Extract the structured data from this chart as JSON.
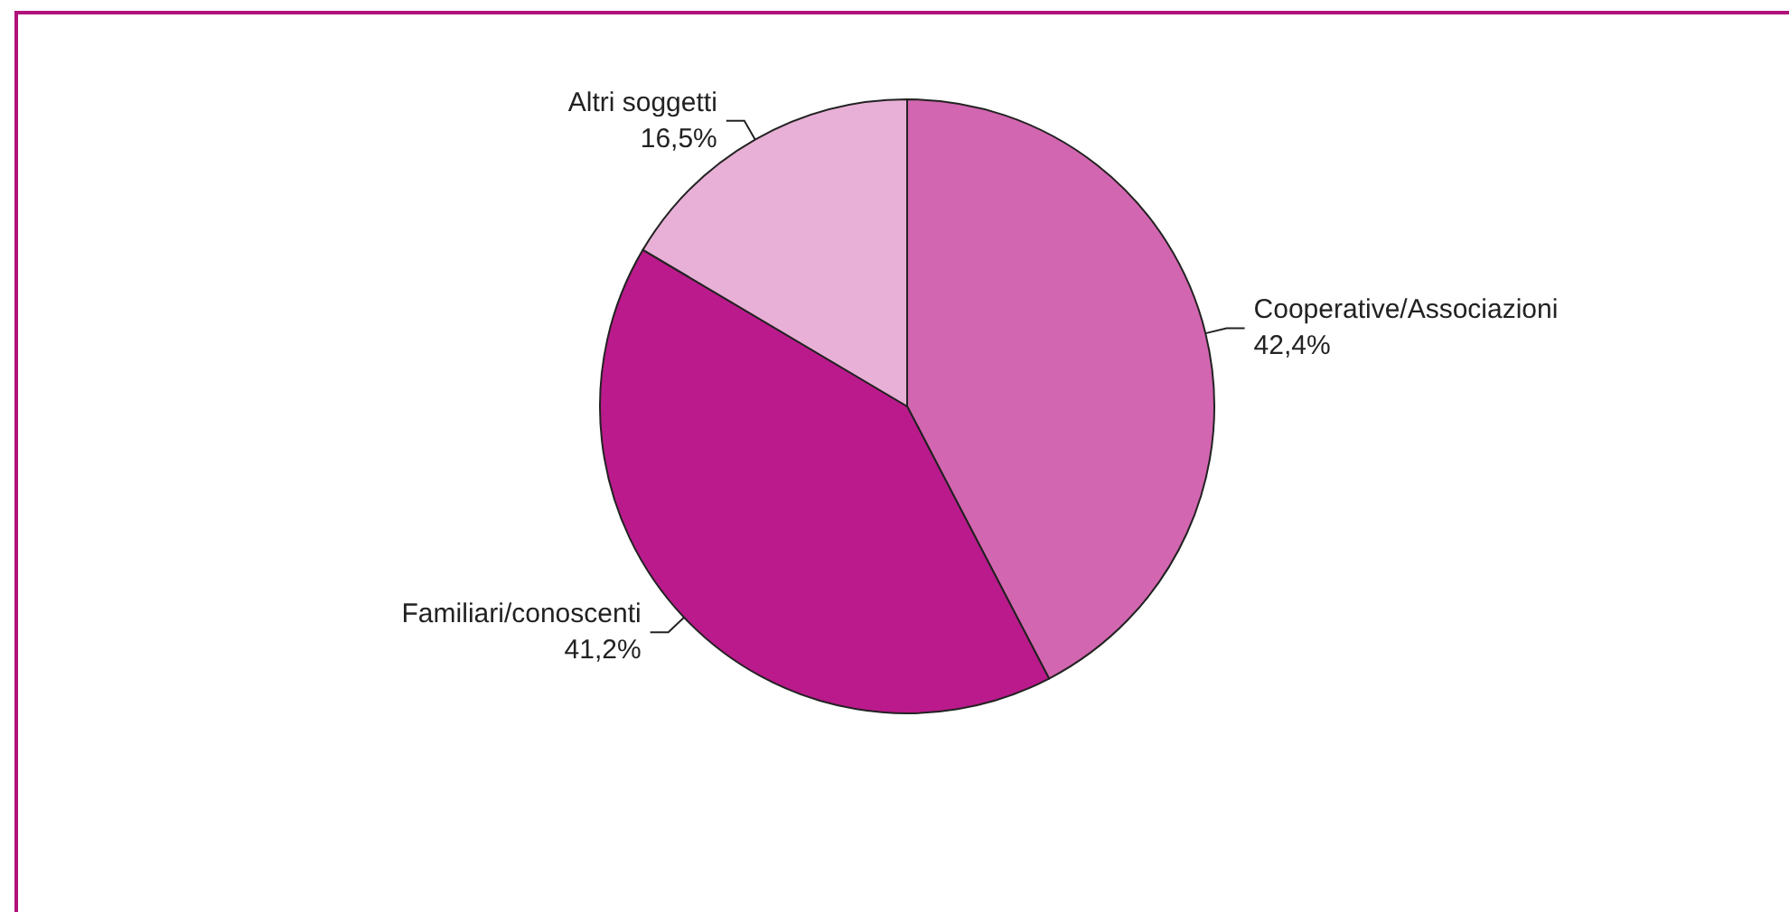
{
  "chart_data": {
    "type": "pie",
    "categories": [
      "Cooperative/Associazioni",
      "Familiari/conoscenti",
      "Altri soggetti"
    ],
    "values": [
      42.4,
      41.2,
      16.5
    ],
    "value_labels": [
      "42,4%",
      "41,2%",
      "16,5%"
    ],
    "colors": [
      "#d366b0",
      "#bb1a8c",
      "#e8b0d6"
    ],
    "legend": false
  }
}
